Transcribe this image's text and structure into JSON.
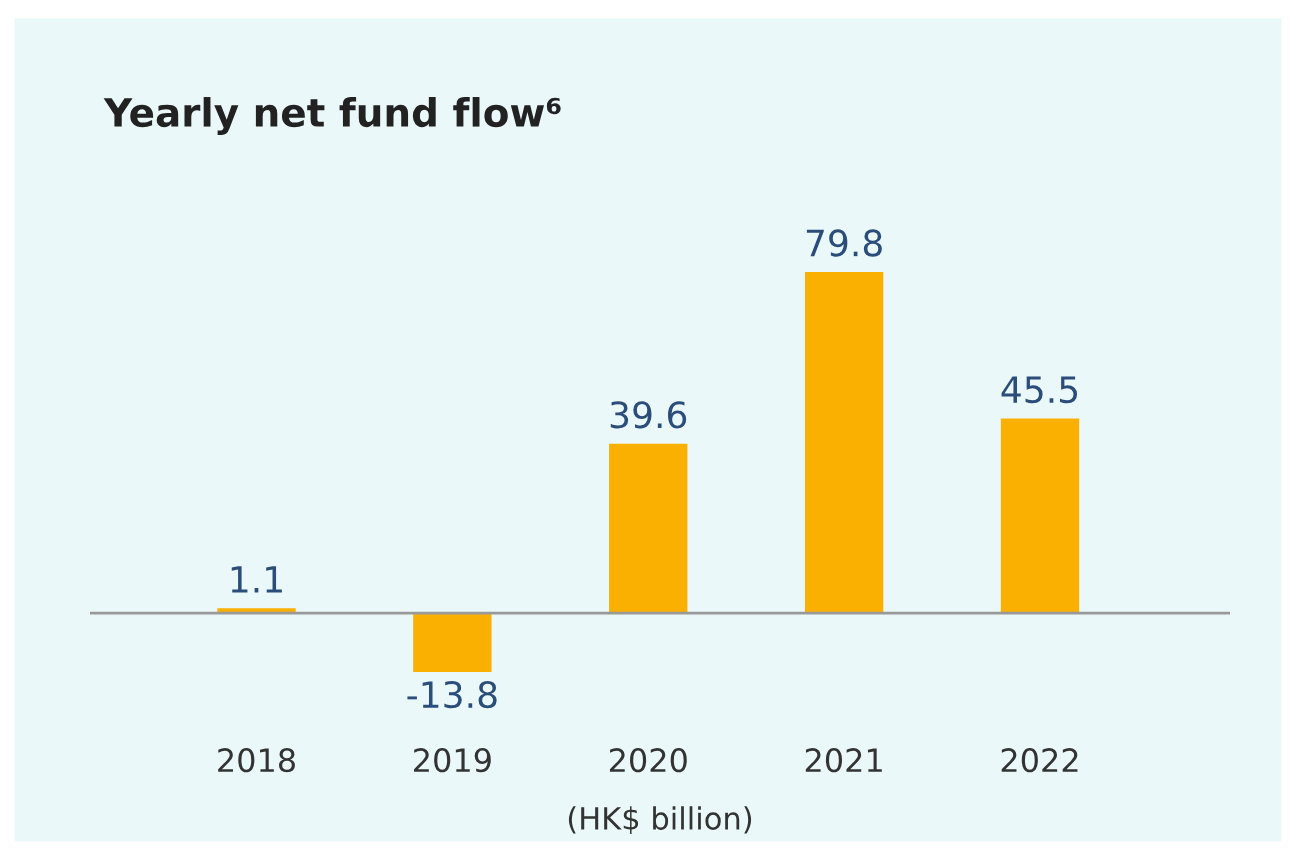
{
  "chart_data": {
    "type": "bar",
    "title": "Yearly net fund flow⁶",
    "xlabel": "(HK$ billion)",
    "categories": [
      "2018",
      "2019",
      "2020",
      "2021",
      "2022"
    ],
    "values": [
      1.1,
      -13.8,
      39.6,
      79.8,
      45.5
    ],
    "color": "#f9b000",
    "data_labels": true,
    "grid": false,
    "legend": false
  }
}
